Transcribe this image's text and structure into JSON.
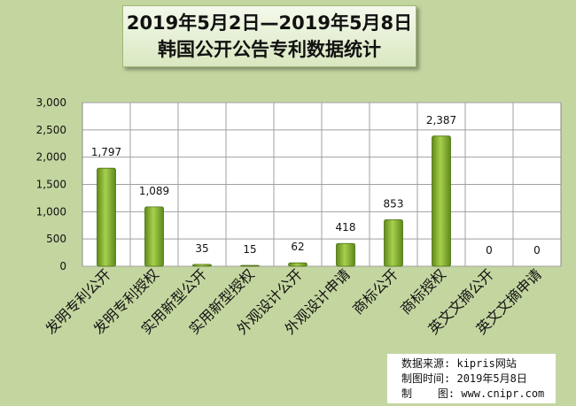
{
  "title": {
    "line1": "2019年5月2日—2019年5月8日",
    "line2": "韩国公开公告专利数据统计"
  },
  "source_box": {
    "source_label": "数据来源:",
    "source_value": "kipris网站",
    "date_label": "制图时间:",
    "date_value": "2019年5月8日",
    "maker_label": "制    图:",
    "maker_value": "www.cnipr.com"
  },
  "colors": {
    "background": "#c4d6a0",
    "plot_background": "#ffffff",
    "bar_fill": "#8fbc3a",
    "bar_dark": "#5f8a1a",
    "grid": "#a0a0a0"
  },
  "chart_data": {
    "type": "bar",
    "title": "2019年5月2日—2019年5月8日 韩国公开公告专利数据统计",
    "xlabel": "",
    "ylabel": "",
    "ylim": [
      0,
      3000
    ],
    "yticks": [
      0,
      500,
      1000,
      1500,
      2000,
      2500,
      3000
    ],
    "ytick_labels": [
      "0",
      "500",
      "1,000",
      "1,500",
      "2,000",
      "2,500",
      "3,000"
    ],
    "grid": true,
    "categories": [
      "发明专利公开",
      "发明专利授权",
      "实用新型公开",
      "实用新型授权",
      "外观设计公开",
      "外观设计申请",
      "商标公开",
      "商标授权",
      "英文文摘公开",
      "英文文摘申请"
    ],
    "values": [
      1797,
      1089,
      35,
      15,
      62,
      418,
      853,
      2387,
      0,
      0
    ],
    "value_labels": [
      "1,797",
      "1,089",
      "35",
      "15",
      "62",
      "418",
      "853",
      "2,387",
      "0",
      "0"
    ]
  }
}
